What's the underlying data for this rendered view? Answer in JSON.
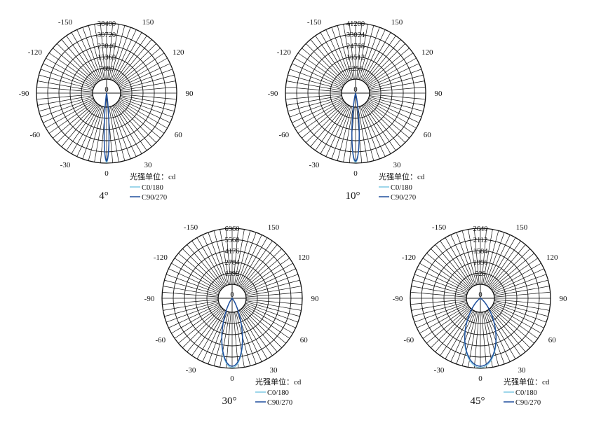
{
  "unit_label": "光强单位：cd",
  "legend": [
    {
      "name": "C0/180",
      "color": "#7ec8e3"
    },
    {
      "name": "C90/270",
      "color": "#1f4e9c"
    }
  ],
  "angle_labels": [
    "0",
    "30",
    "60",
    "90",
    "120",
    "150",
    "-30",
    "-60",
    "-90",
    "-120",
    "-150"
  ],
  "chart_data": [
    {
      "type": "polar",
      "caption": "4°",
      "rmax": 38400,
      "ring_labels": [
        "38400",
        "30720",
        "23040",
        "15360",
        "7680"
      ],
      "center_label": "0",
      "beam_half_angle_deg": 4,
      "grid": true
    },
    {
      "type": "polar",
      "caption": "10°",
      "rmax": 41280,
      "ring_labels": [
        "41280",
        "33024",
        "24768",
        "16512",
        "8256"
      ],
      "center_label": "0",
      "beam_half_angle_deg": 6,
      "grid": true
    },
    {
      "type": "polar",
      "caption": "30°",
      "rmax": 6960,
      "ring_labels": [
        "6960",
        "5568",
        "4176",
        "2784",
        "1392"
      ],
      "center_label": "0",
      "beam_half_angle_deg": 17,
      "grid": true
    },
    {
      "type": "polar",
      "caption": "45°",
      "rmax": 2640,
      "ring_labels": [
        "2640",
        "2112",
        "1584",
        "1056",
        "528"
      ],
      "center_label": "0",
      "beam_half_angle_deg": 26,
      "grid": true
    }
  ]
}
